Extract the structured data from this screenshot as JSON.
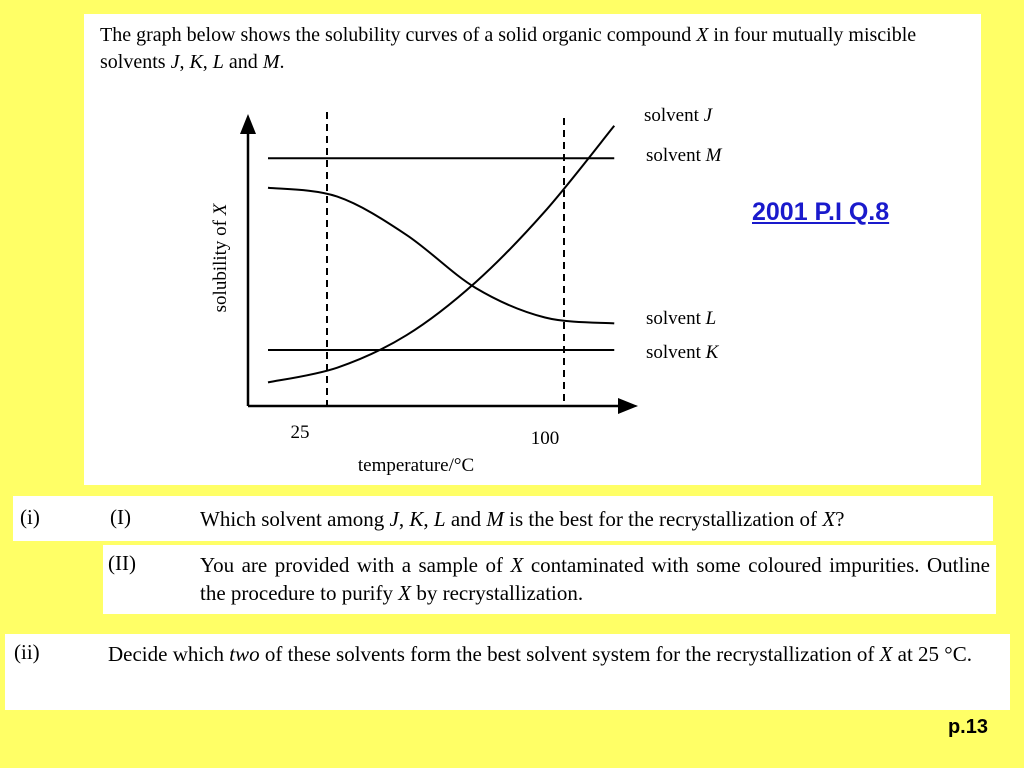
{
  "intro": {
    "part1": "The graph below shows the solubility curves of a solid organic compound ",
    "var_x": "X",
    "part2": " in four mutually miscible solvents ",
    "var_j": "J",
    "sep1": ", ",
    "var_k": "K",
    "sep2": ", ",
    "var_l": "L",
    "and": " and ",
    "var_m": "M",
    "end": "."
  },
  "chart_data": {
    "type": "line",
    "xlabel": "temperature/°C",
    "ylabel_prefix": "solubility of ",
    "ylabel_var": "X",
    "x_ticks": [
      {
        "value": 25,
        "label": "25"
      },
      {
        "value": 100,
        "label": "100"
      }
    ],
    "x_range": [
      0,
      130
    ],
    "y_range": [
      0,
      10
    ],
    "series": [
      {
        "name": "solvent J",
        "label_text": "solvent ",
        "label_var": "J",
        "x": [
          0,
          25,
          50,
          75,
          100,
          125
        ],
        "y": [
          0.8,
          1.3,
          2.4,
          4.2,
          6.6,
          9.5
        ]
      },
      {
        "name": "solvent M",
        "label_text": "solvent ",
        "label_var": "M",
        "x": [
          0,
          125
        ],
        "y": [
          8.4,
          8.4
        ]
      },
      {
        "name": "solvent L",
        "label_text": "solvent ",
        "label_var": "L",
        "x": [
          0,
          25,
          50,
          75,
          100,
          125
        ],
        "y": [
          7.4,
          7.1,
          5.8,
          4.0,
          3.0,
          2.8
        ]
      },
      {
        "name": "solvent K",
        "label_text": "solvent ",
        "label_var": "K",
        "x": [
          0,
          125
        ],
        "y": [
          1.9,
          1.9
        ]
      }
    ],
    "grid": false
  },
  "reference": "2001 P.I Q.8",
  "questions": {
    "i_marker": "(i)",
    "I_marker": "(I)",
    "I_pre": "Which solvent among ",
    "I_j": "J",
    "I_c1": ", ",
    "I_k": "K",
    "I_c2": ", ",
    "I_l": "L",
    "I_and": " and ",
    "I_m": "M",
    "I_mid": " is the best for the recrystallization of ",
    "I_x": "X",
    "I_end": "?",
    "II_marker": "(II)",
    "II_pre": "You are provided with a sample of ",
    "II_x1": "X",
    "II_mid": " contaminated with some coloured impurities.  Outline the procedure to purify ",
    "II_x2": "X",
    "II_end": " by recrystallization.",
    "ii_marker": "(ii)",
    "ii_pre": "Decide which ",
    "ii_two": "two",
    "ii_mid": " of these solvents form the best solvent system for the recrystallization of ",
    "ii_x": "X",
    "ii_end": " at 25 °C."
  },
  "page_number": "p.13"
}
